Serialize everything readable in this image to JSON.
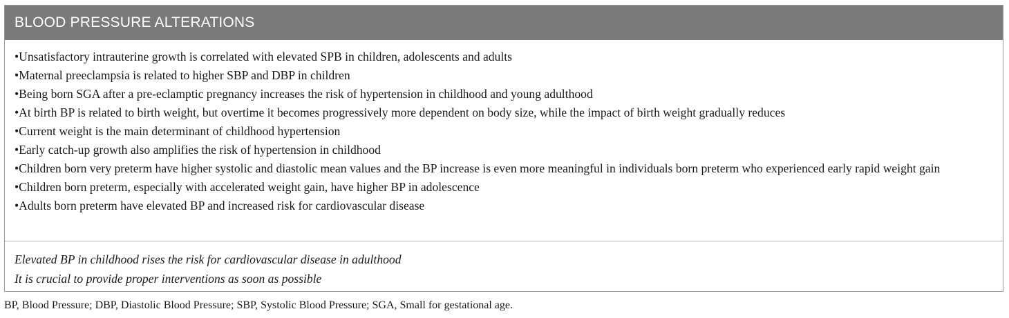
{
  "table": {
    "title": "BLOOD PRESSURE ALTERATIONS",
    "bullet": "•",
    "findings": [
      "Unsatisfactory intrauterine growth is correlated with elevated SPB in children, adolescents and adults",
      "Maternal preeclampsia is related to higher SBP and DBP in children",
      "Being born SGA after a pre-eclamptic pregnancy increases the risk of hypertension in childhood and young adulthood",
      "At birth BP is related to birth weight, but overtime it becomes progressively more dependent on body size, while the impact of birth weight gradually reduces",
      "Current weight is the main determinant of childhood hypertension",
      "Early catch-up growth also amplifies the risk of hypertension in childhood",
      "Children born very preterm have higher systolic and diastolic mean values and the BP increase is even more meaningful in individuals born preterm who experienced early rapid weight gain",
      "Children born preterm, especially with accelerated weight gain, have higher BP in adolescence",
      "Adults born preterm have elevated BP and increased risk for cardiovascular disease"
    ],
    "conclusions": [
      "Elevated BP in childhood rises the risk for cardiovascular disease in adulthood",
      "It is crucial to provide proper interventions as soon as possible"
    ]
  },
  "footnote": "BP, Blood Pressure; DBP, Diastolic Blood Pressure; SBP, Systolic Blood Pressure; SGA, Small for gestational age."
}
